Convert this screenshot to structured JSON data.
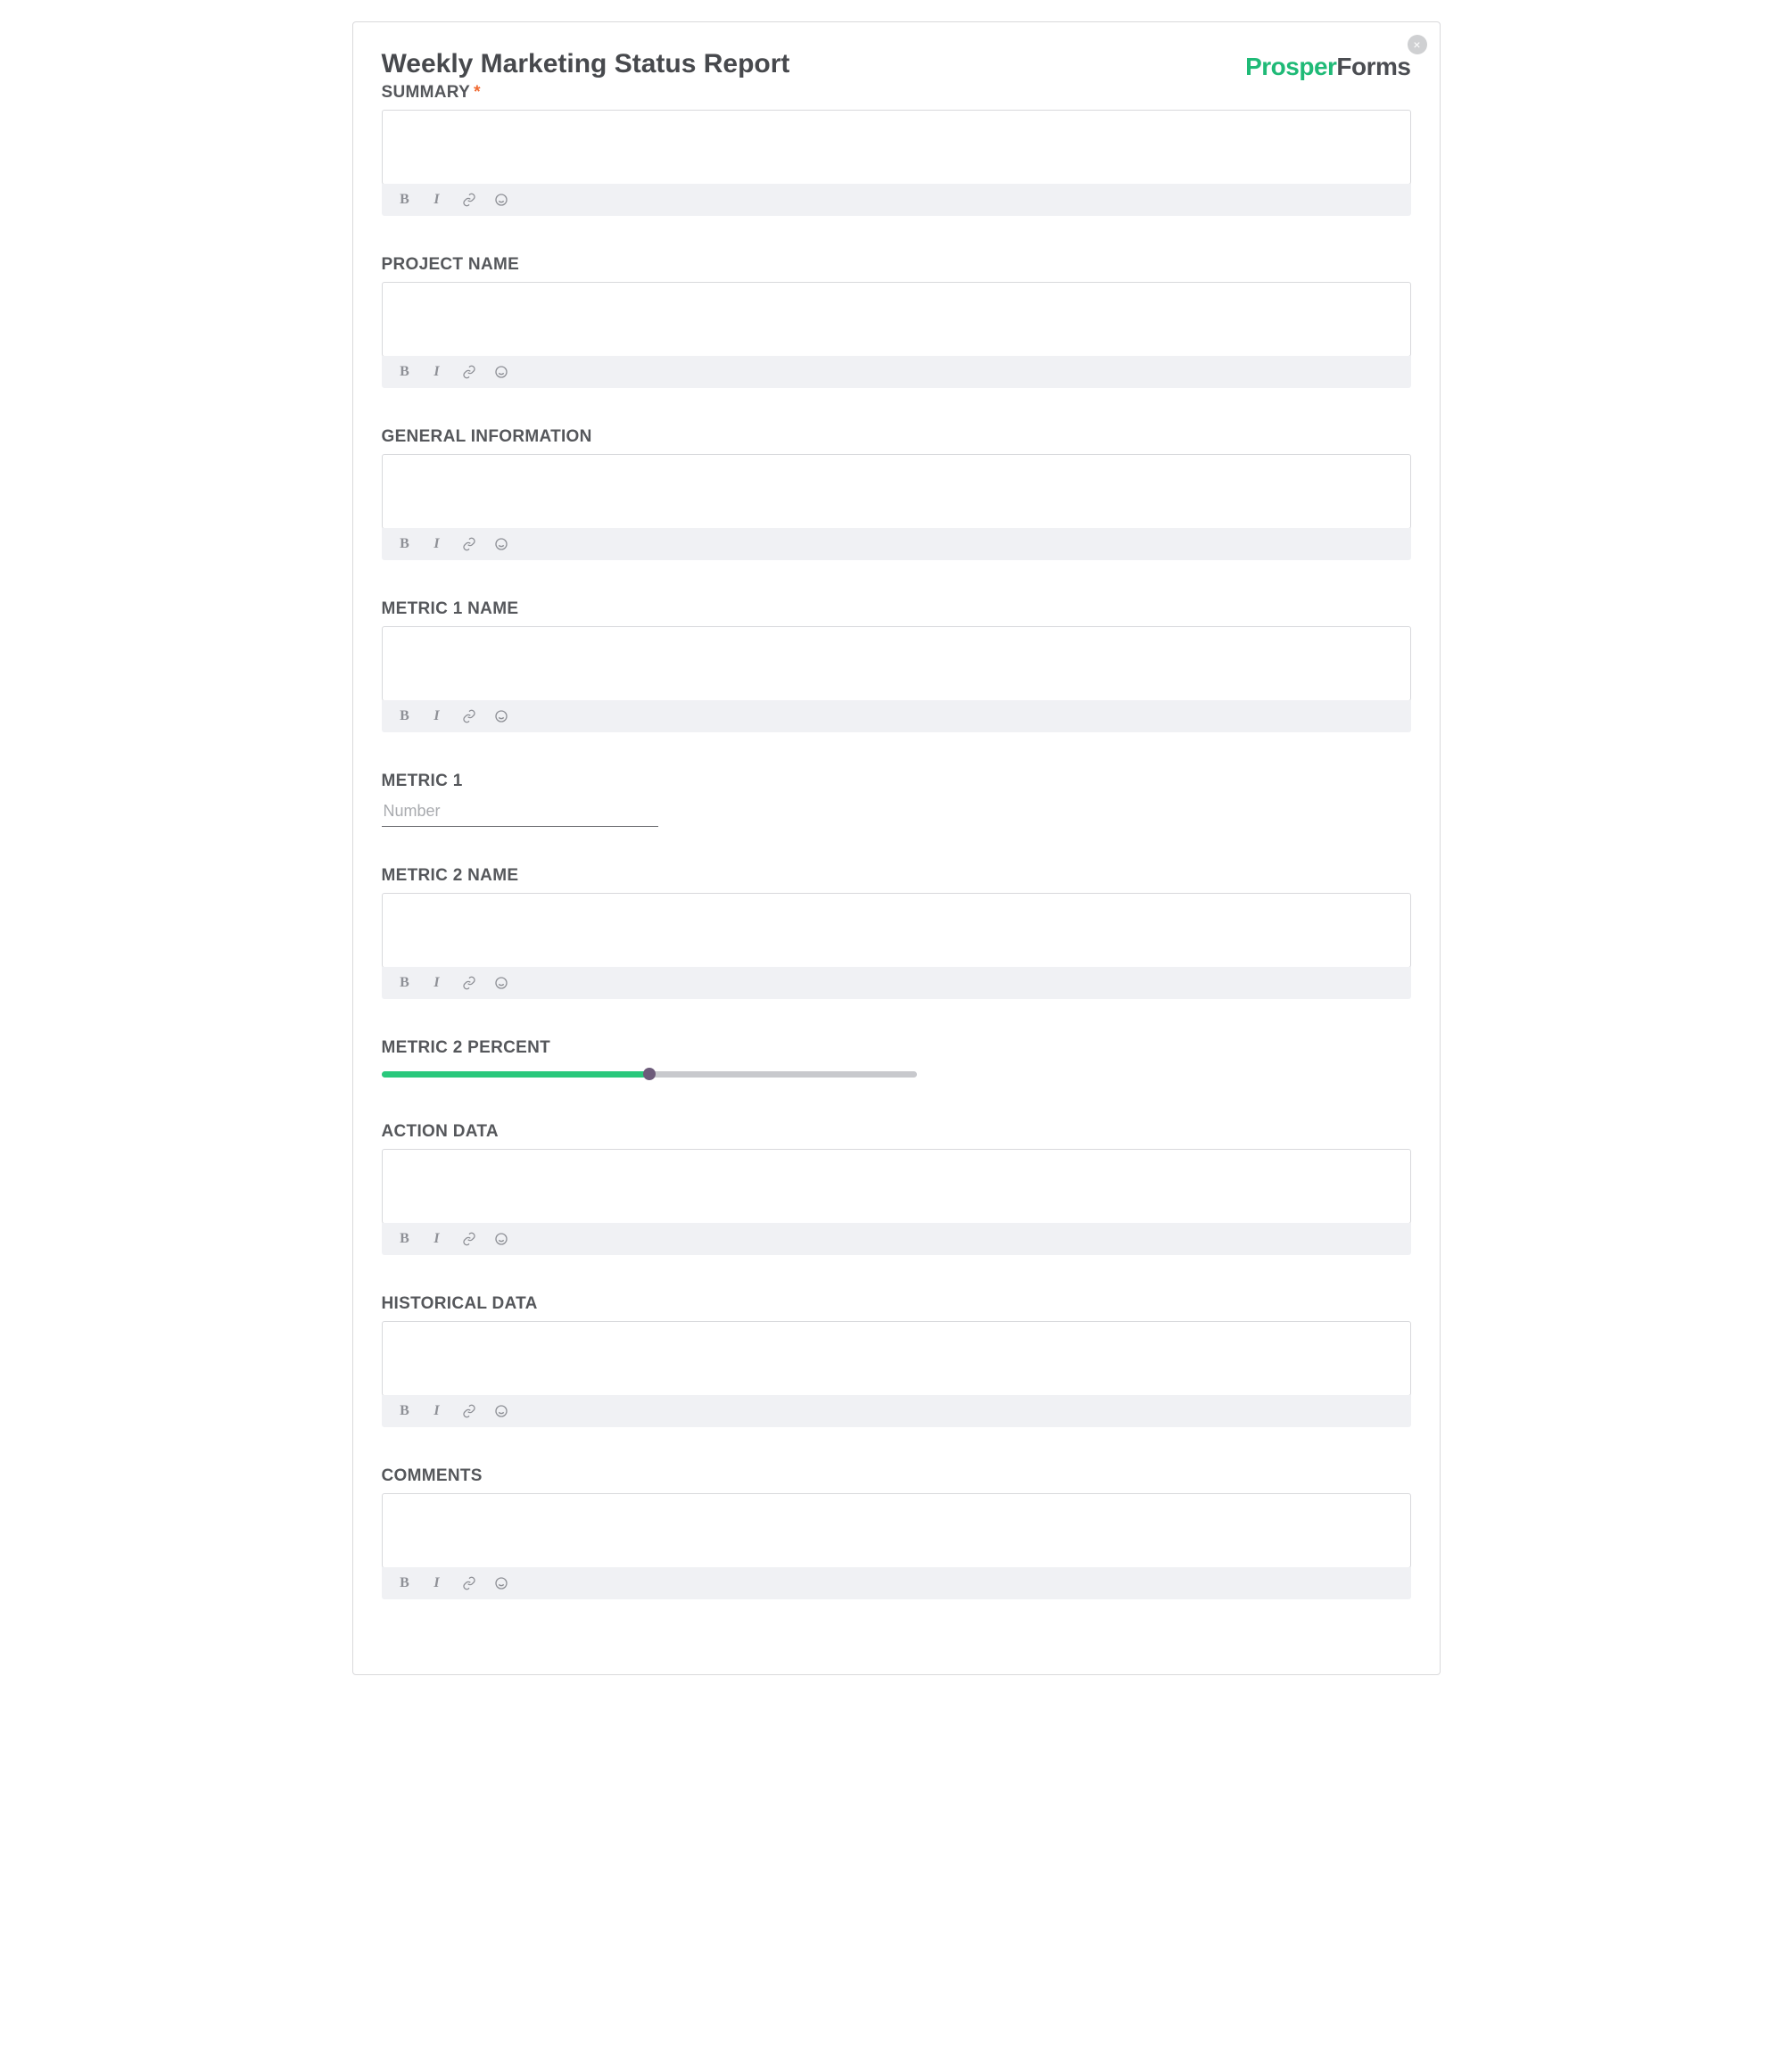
{
  "form": {
    "title": "Weekly Marketing Status Report",
    "logo_part1": "Prosper",
    "logo_part2": "Forms",
    "close_label": "×"
  },
  "colors": {
    "logo_accent": "#1fba77",
    "logo_dark": "#4b4d52",
    "label_text": "#55575b",
    "required_star": "#f06a32",
    "toolbar_bg": "#f0f1f4",
    "toolbar_icon": "#8e9096",
    "input_border": "#d8d9dc",
    "slider_track": "#c8c9cd",
    "slider_fill": "#29c87c",
    "slider_thumb": "#6d5b7a",
    "modal_border": "#d9d9db",
    "close_bg": "#cfd0d2"
  },
  "fields": [
    {
      "key": "summary",
      "label": "SUMMARY",
      "type": "richtext",
      "required": true
    },
    {
      "key": "project_name",
      "label": "PROJECT NAME",
      "type": "richtext",
      "required": false
    },
    {
      "key": "general_info",
      "label": "GENERAL INFORMATION",
      "type": "richtext",
      "required": false
    },
    {
      "key": "metric1_name",
      "label": "METRIC 1 NAME",
      "type": "richtext",
      "required": false
    },
    {
      "key": "metric1",
      "label": "METRIC 1",
      "type": "number",
      "placeholder": "Number"
    },
    {
      "key": "metric2_name",
      "label": "METRIC 2 NAME",
      "type": "richtext",
      "required": false
    },
    {
      "key": "metric2_pct",
      "label": "METRIC 2 PERCENT",
      "type": "slider",
      "value": 50,
      "min": 0,
      "max": 100
    },
    {
      "key": "action_data",
      "label": "ACTION DATA",
      "type": "richtext",
      "required": false
    },
    {
      "key": "historical",
      "label": "HISTORICAL DATA",
      "type": "richtext",
      "required": false
    },
    {
      "key": "comments",
      "label": "COMMENTS",
      "type": "richtext",
      "required": false
    }
  ],
  "toolbar": {
    "bold_glyph": "B",
    "italic_glyph": "I"
  }
}
